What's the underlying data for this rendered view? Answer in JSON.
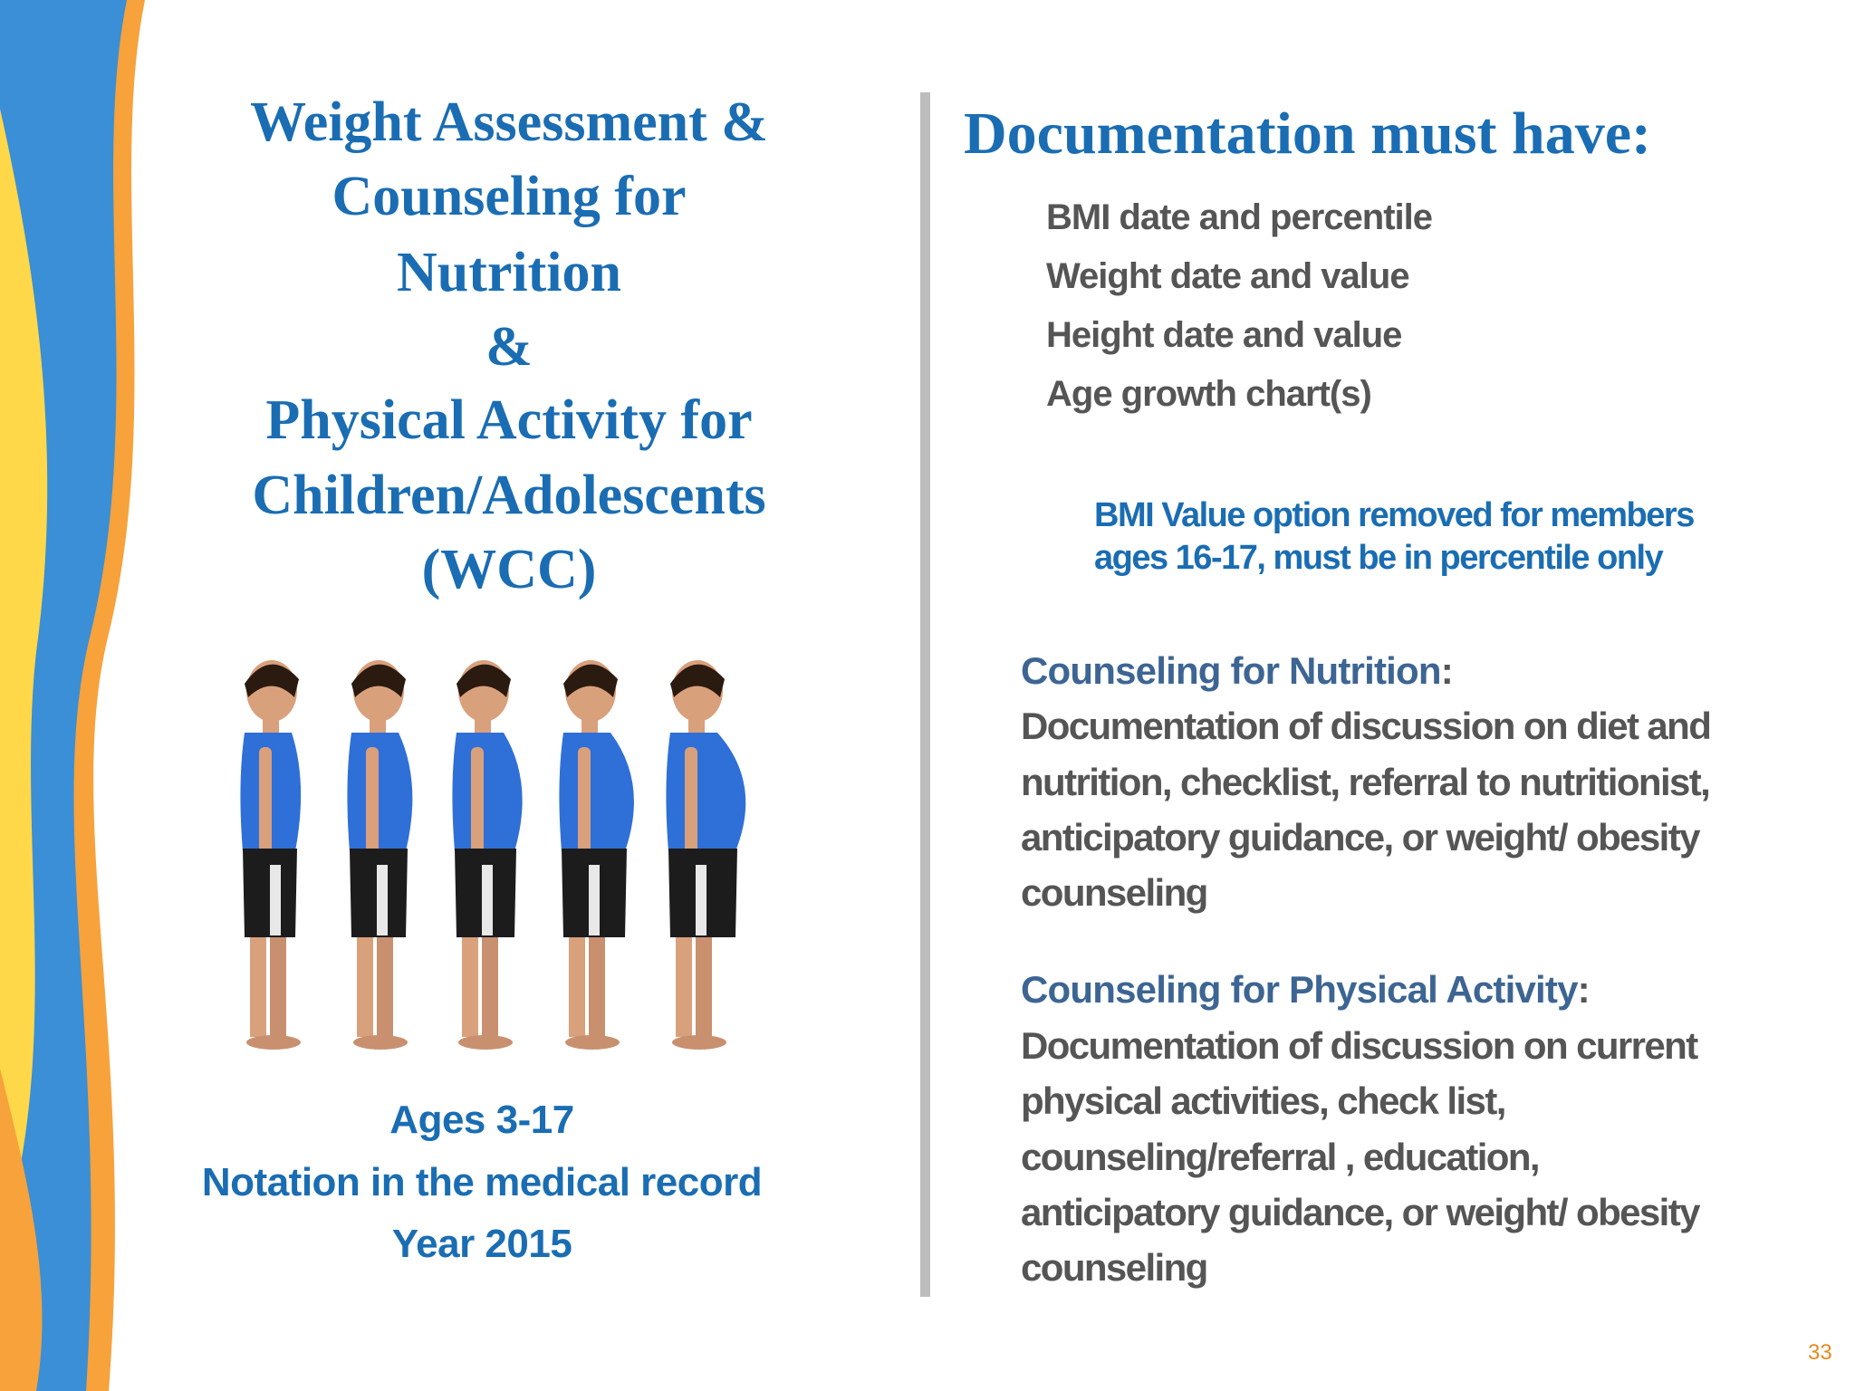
{
  "left": {
    "title_lines": [
      "Weight Assessment &",
      "Counseling for",
      "Nutrition",
      "&",
      "Physical Activity for",
      "Children/Adolescents",
      "(WCC)"
    ],
    "footer_lines": [
      "Ages 3-17",
      "Notation in the medical record",
      "Year 2015"
    ]
  },
  "right": {
    "heading": "Documentation must have:",
    "items": [
      "BMI date and percentile",
      "Weight date and value",
      "Height date and value",
      "Age growth chart(s)"
    ],
    "note_lines": [
      "BMI Value option removed for members",
      "ages 16-17,  must be in percentile only"
    ],
    "sections": [
      {
        "heading": "Counseling for Nutrition",
        "punct": ":",
        "lines": [
          "Documentation of discussion on diet and",
          "nutrition, checklist, referral to nutritionist,",
          "anticipatory guidance, or  weight/ obesity",
          "counseling"
        ]
      },
      {
        "heading": "Counseling for Physical Activity",
        "punct": ":",
        "lines": [
          "Documentation of discussion on current",
          "physical activities, check list,",
          "counseling/referral , education,",
          "anticipatory guidance, or  weight/ obesity",
          "counseling"
        ]
      }
    ]
  },
  "page_number": "33"
}
